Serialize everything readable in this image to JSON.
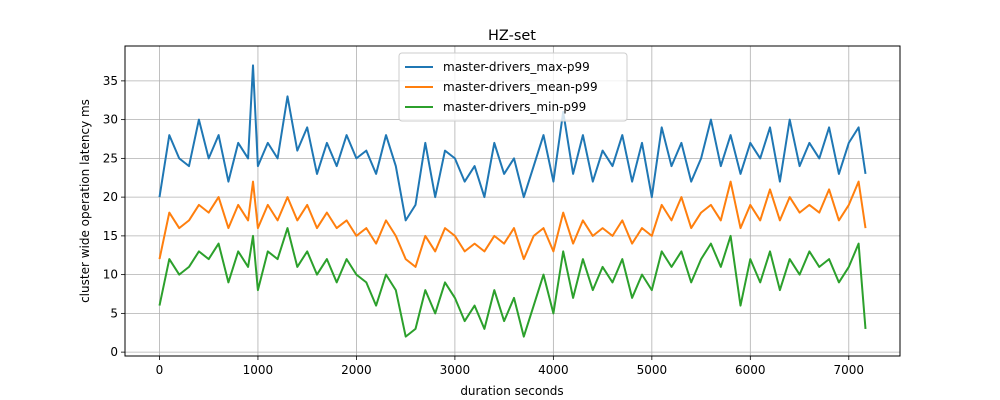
{
  "chart_data": {
    "type": "line",
    "title": "HZ-set",
    "xlabel": "duration seconds",
    "ylabel": "cluster wide operation latency ms",
    "xlim": [
      -350,
      7520
    ],
    "ylim": [
      -0.5,
      39.5
    ],
    "xticks": [
      0,
      1000,
      2000,
      3000,
      4000,
      5000,
      6000,
      7000
    ],
    "yticks": [
      0,
      5,
      10,
      15,
      20,
      25,
      30,
      35
    ],
    "grid": true,
    "legend_position": "upper center",
    "x": [
      0,
      100,
      200,
      300,
      400,
      500,
      600,
      700,
      800,
      900,
      950,
      1000,
      1100,
      1200,
      1300,
      1400,
      1500,
      1600,
      1700,
      1800,
      1900,
      2000,
      2100,
      2200,
      2300,
      2400,
      2500,
      2600,
      2700,
      2800,
      2900,
      3000,
      3100,
      3200,
      3300,
      3400,
      3500,
      3600,
      3700,
      3800,
      3900,
      4000,
      4100,
      4200,
      4300,
      4400,
      4500,
      4600,
      4700,
      4800,
      4900,
      5000,
      5100,
      5200,
      5300,
      5400,
      5500,
      5600,
      5700,
      5800,
      5900,
      6000,
      6100,
      6200,
      6300,
      6400,
      6500,
      6600,
      6700,
      6800,
      6900,
      7000,
      7100,
      7170
    ],
    "series": [
      {
        "name": "master-drivers_max-p99",
        "color": "#1f77b4",
        "values": [
          20,
          28,
          25,
          24,
          30,
          25,
          28,
          22,
          27,
          25,
          37,
          24,
          27,
          25,
          33,
          26,
          29,
          23,
          27,
          24,
          28,
          25,
          26,
          23,
          28,
          24,
          17,
          19,
          27,
          20,
          26,
          25,
          22,
          24,
          20,
          27,
          23,
          25,
          20,
          24,
          28,
          22,
          31,
          23,
          28,
          22,
          26,
          24,
          28,
          22,
          27,
          20,
          29,
          24,
          27,
          22,
          25,
          30,
          24,
          28,
          23,
          27,
          25,
          29,
          22,
          30,
          24,
          27,
          25,
          29,
          23,
          27,
          29,
          23
        ]
      },
      {
        "name": "master-drivers_mean-p99",
        "color": "#ff7f0e",
        "values": [
          12,
          18,
          16,
          17,
          19,
          18,
          20,
          16,
          19,
          17,
          22,
          16,
          19,
          17,
          20,
          17,
          19,
          16,
          18,
          16,
          17,
          15,
          16,
          14,
          17,
          15,
          12,
          11,
          15,
          13,
          16,
          15,
          13,
          14,
          13,
          15,
          14,
          16,
          12,
          15,
          16,
          13,
          18,
          14,
          17,
          15,
          16,
          15,
          17,
          14,
          16,
          15,
          19,
          17,
          20,
          16,
          18,
          19,
          17,
          22,
          16,
          19,
          17,
          21,
          17,
          20,
          18,
          19,
          18,
          21,
          17,
          19,
          22,
          16
        ]
      },
      {
        "name": "master-drivers_min-p99",
        "color": "#2ca02c",
        "values": [
          6,
          12,
          10,
          11,
          13,
          12,
          14,
          9,
          13,
          11,
          15,
          8,
          13,
          12,
          16,
          11,
          13,
          10,
          12,
          9,
          12,
          10,
          9,
          6,
          10,
          8,
          2,
          3,
          8,
          5,
          9,
          7,
          4,
          6,
          3,
          8,
          4,
          7,
          2,
          6,
          10,
          5,
          13,
          7,
          12,
          8,
          11,
          9,
          12,
          7,
          10,
          8,
          13,
          11,
          13,
          9,
          12,
          14,
          11,
          15,
          6,
          12,
          9,
          13,
          8,
          12,
          10,
          13,
          11,
          12,
          9,
          11,
          14,
          3
        ]
      }
    ]
  }
}
